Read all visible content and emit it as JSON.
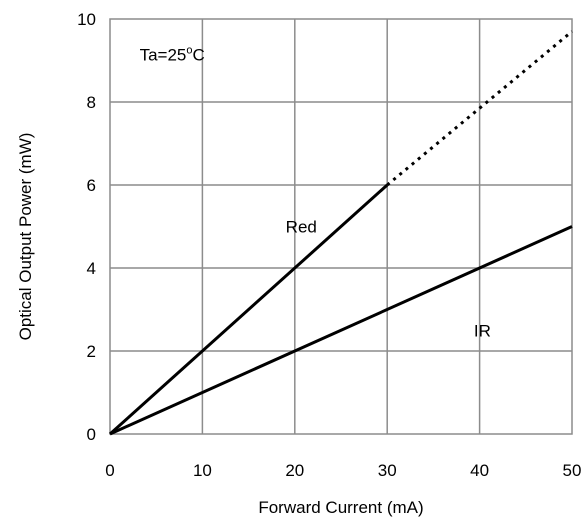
{
  "chart_data": {
    "type": "line",
    "title": "",
    "xlabel": "Forward Current  (mA)",
    "ylabel": "Optical Output Power  (mW)",
    "xlim": [
      0,
      50
    ],
    "ylim": [
      0,
      10
    ],
    "x_ticks": [
      0,
      10,
      20,
      30,
      40,
      50
    ],
    "y_ticks": [
      0,
      2,
      4,
      6,
      8,
      10
    ],
    "grid": true,
    "annotations": {
      "condition": "Ta=25",
      "condition_superscript": "o",
      "condition_unit": "C"
    },
    "series": [
      {
        "name": "Red",
        "solid": {
          "x": [
            0,
            30
          ],
          "y": [
            0,
            6
          ]
        },
        "dotted": {
          "x": [
            30,
            50
          ],
          "y": [
            6,
            9.7
          ]
        }
      },
      {
        "name": "IR",
        "solid": {
          "x": [
            0,
            50
          ],
          "y": [
            0,
            5
          ]
        }
      }
    ]
  }
}
